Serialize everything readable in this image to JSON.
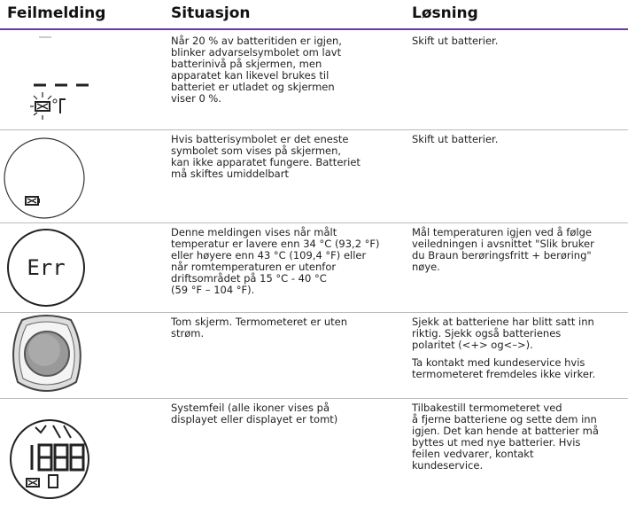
{
  "header": [
    "Feilmelding",
    "Situasjon",
    "Løsning"
  ],
  "rows": [
    {
      "situation": [
        "Når 20 % av batteritiden er igjen,",
        "blinker advarselsymbolet om lavt",
        "batterinivå på skjermen, men",
        "apparatet kan likevel brukes til",
        "batteriet er utladet og skjermen",
        "viser 0 %."
      ],
      "solution": [
        [
          "Skift ut batterier."
        ]
      ]
    },
    {
      "situation": [
        "Hvis batterisymbolet er det eneste",
        "symbolet som vises på skjermen,",
        "kan ikke apparatet fungere. Batteriet",
        "må skiftes umiddelbart"
      ],
      "solution": [
        [
          "Skift ut batterier."
        ]
      ]
    },
    {
      "icon_text": "Err",
      "situation": [
        "Denne meldingen vises når målt",
        "temperatur er lavere enn 34 °C (93,2 °F)",
        "eller høyere enn 43 °C (109,4 °F) eller",
        "når romtemperaturen er utenfor",
        "driftsområdet på 15 °C - 40 °C",
        "(59 °F – 104 °F)."
      ],
      "solution": [
        [
          "Mål temperaturen igjen ved å følge",
          "veiledningen i avsnittet \"Slik bruker",
          "du Braun berøringsfritt + berøring\"",
          "nøye."
        ]
      ]
    },
    {
      "situation": [
        "Tom skjerm. Termometeret er uten",
        "strøm."
      ],
      "solution": [
        [
          "Sjekk at batteriene har blitt satt inn",
          "riktig. Sjekk også batterienes",
          "polaritet (<+> og<–>)."
        ],
        [
          "Ta kontakt med kundeservice hvis",
          "termometeret fremdeles ikke virker."
        ]
      ]
    },
    {
      "situation": [
        "Systemfeil (alle ikoner vises på",
        "displayet eller displayet er tomt)"
      ],
      "solution": [
        [
          "Tilbakestill termometeret ved",
          "å fjerne batteriene og sette dem inn",
          "igjen. Det kan hende at batterier må",
          "byttes ut med nye batterier. Hvis",
          "feilen vedvarer, kontakt",
          "kundeservice."
        ]
      ]
    }
  ]
}
